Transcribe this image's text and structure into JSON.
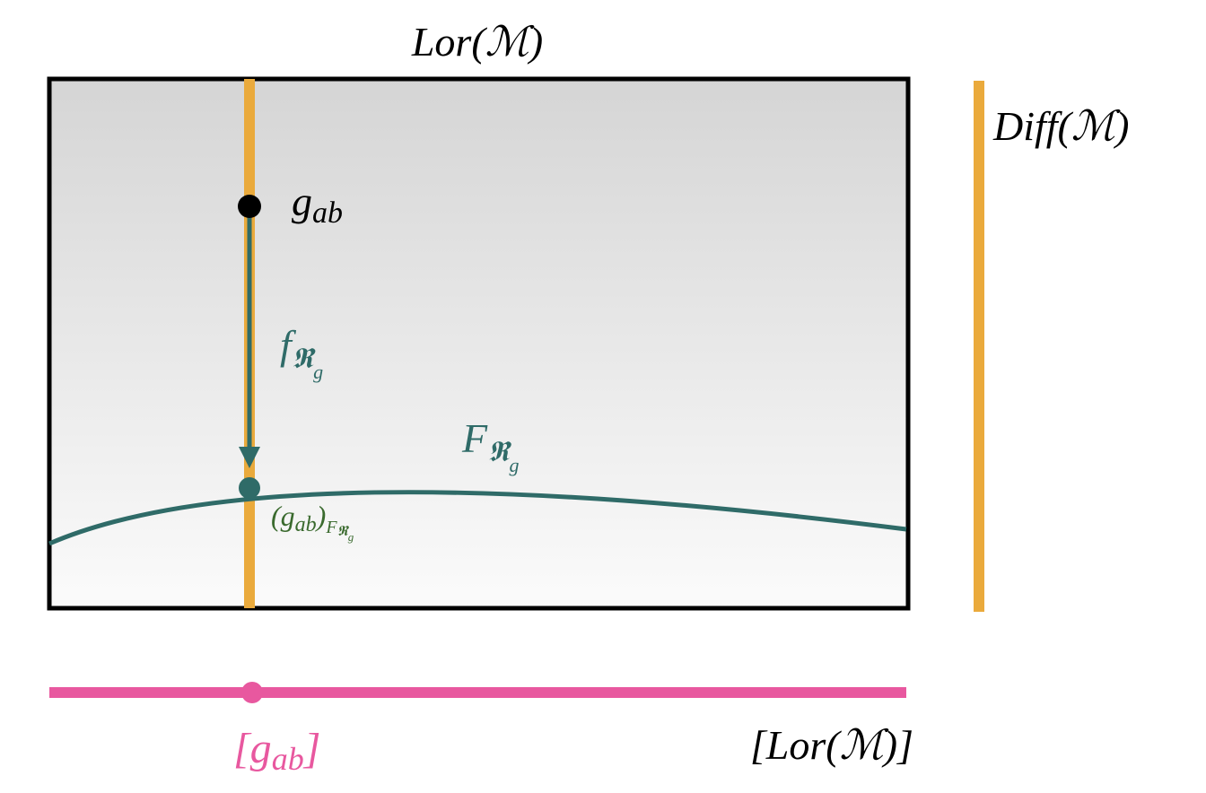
{
  "top_label": "Lor(ℳ)",
  "right_label": "Diff(ℳ)",
  "point_label": [
    "g",
    "ab"
  ],
  "map_label": [
    "f",
    "𝕽",
    "g"
  ],
  "section_label": [
    "F",
    "𝕽",
    "g"
  ],
  "projected_label": [
    "(g",
    "ab",
    ")",
    "F",
    "𝕽",
    "g"
  ],
  "class_label": [
    "[g",
    "ab",
    "]"
  ],
  "quotient_label": "[Lor(ℳ)]"
}
